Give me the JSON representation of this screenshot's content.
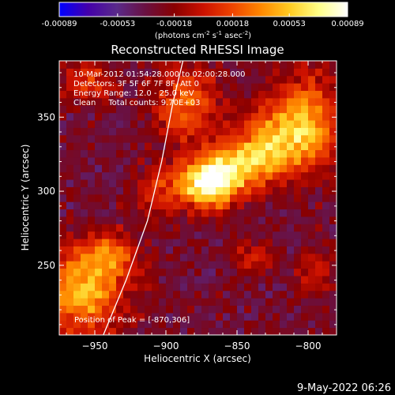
{
  "chart_data": {
    "type": "heatmap",
    "title": "Reconstructed RHESSI Image",
    "xlabel": "Heliocentric X (arcsec)",
    "ylabel": "Heliocentric Y (arcsec)",
    "xlim": [
      -975,
      -780
    ],
    "ylim": [
      203,
      388
    ],
    "xticks": [
      -950,
      -900,
      -850,
      -800
    ],
    "yticks": [
      250,
      300,
      350
    ],
    "colorbar": {
      "ticks": [
        "-0.00089",
        "-0.00053",
        "-0.00018",
        "0.00018",
        "0.00053",
        "0.00089"
      ],
      "range": [
        -0.00089,
        0.00089
      ],
      "unit_prefix": "(photons cm",
      "unit_exp1": "-2",
      "unit_mid": " s",
      "unit_exp2": "-1",
      "unit_mid2": " asec",
      "unit_exp3": "-2",
      "unit_suffix": ")",
      "colors": [
        "#0000ff",
        "#4400aa",
        "#5a2a8a",
        "#6a1040",
        "#8a0000",
        "#cc1100",
        "#ee4400",
        "#ff8800",
        "#ffcc22",
        "#ffff88",
        "#ffffff"
      ]
    },
    "annotations": {
      "time": "10-Mar-2012 01:54:28.000 to 02:00:28.000",
      "detectors": "Detectors: 3F 5F 6F 7F 8F, Att 0",
      "energy": "Energy Range: 12.0 - 25.0 keV",
      "clean": "Clean     Total counts: 9.70E+03",
      "peak": "Position of Peak = [-870,306]"
    },
    "peak": [
      -870,
      306
    ],
    "limb_curve": [
      [
        -944,
        203
      ],
      [
        -928,
        240
      ],
      [
        -913,
        280
      ],
      [
        -903,
        320
      ],
      [
        -895,
        360
      ],
      [
        -888,
        388
      ]
    ],
    "sources": [
      {
        "x": -870,
        "y": 306,
        "amp": 1.0,
        "sx": 14,
        "sy": 12
      },
      {
        "x": -845,
        "y": 318,
        "amp": 0.55,
        "sx": 16,
        "sy": 12
      },
      {
        "x": -820,
        "y": 335,
        "amp": 0.5,
        "sx": 20,
        "sy": 16
      },
      {
        "x": -800,
        "y": 350,
        "amp": 0.45,
        "sx": 18,
        "sy": 24
      },
      {
        "x": -885,
        "y": 358,
        "amp": 0.45,
        "sx": 16,
        "sy": 18
      },
      {
        "x": -955,
        "y": 375,
        "amp": 0.35,
        "sx": 14,
        "sy": 10
      },
      {
        "x": -960,
        "y": 232,
        "amp": 0.65,
        "sx": 22,
        "sy": 20
      },
      {
        "x": -940,
        "y": 258,
        "amp": 0.4,
        "sx": 14,
        "sy": 10
      },
      {
        "x": -905,
        "y": 300,
        "amp": 0.3,
        "sx": 12,
        "sy": 12
      },
      {
        "x": -840,
        "y": 255,
        "amp": 0.25,
        "sx": 10,
        "sy": 8
      },
      {
        "x": -795,
        "y": 245,
        "amp": 0.25,
        "sx": 10,
        "sy": 10
      }
    ],
    "background_level": -0.35
  },
  "footer": {
    "date": "9-May-2022 06:26"
  }
}
